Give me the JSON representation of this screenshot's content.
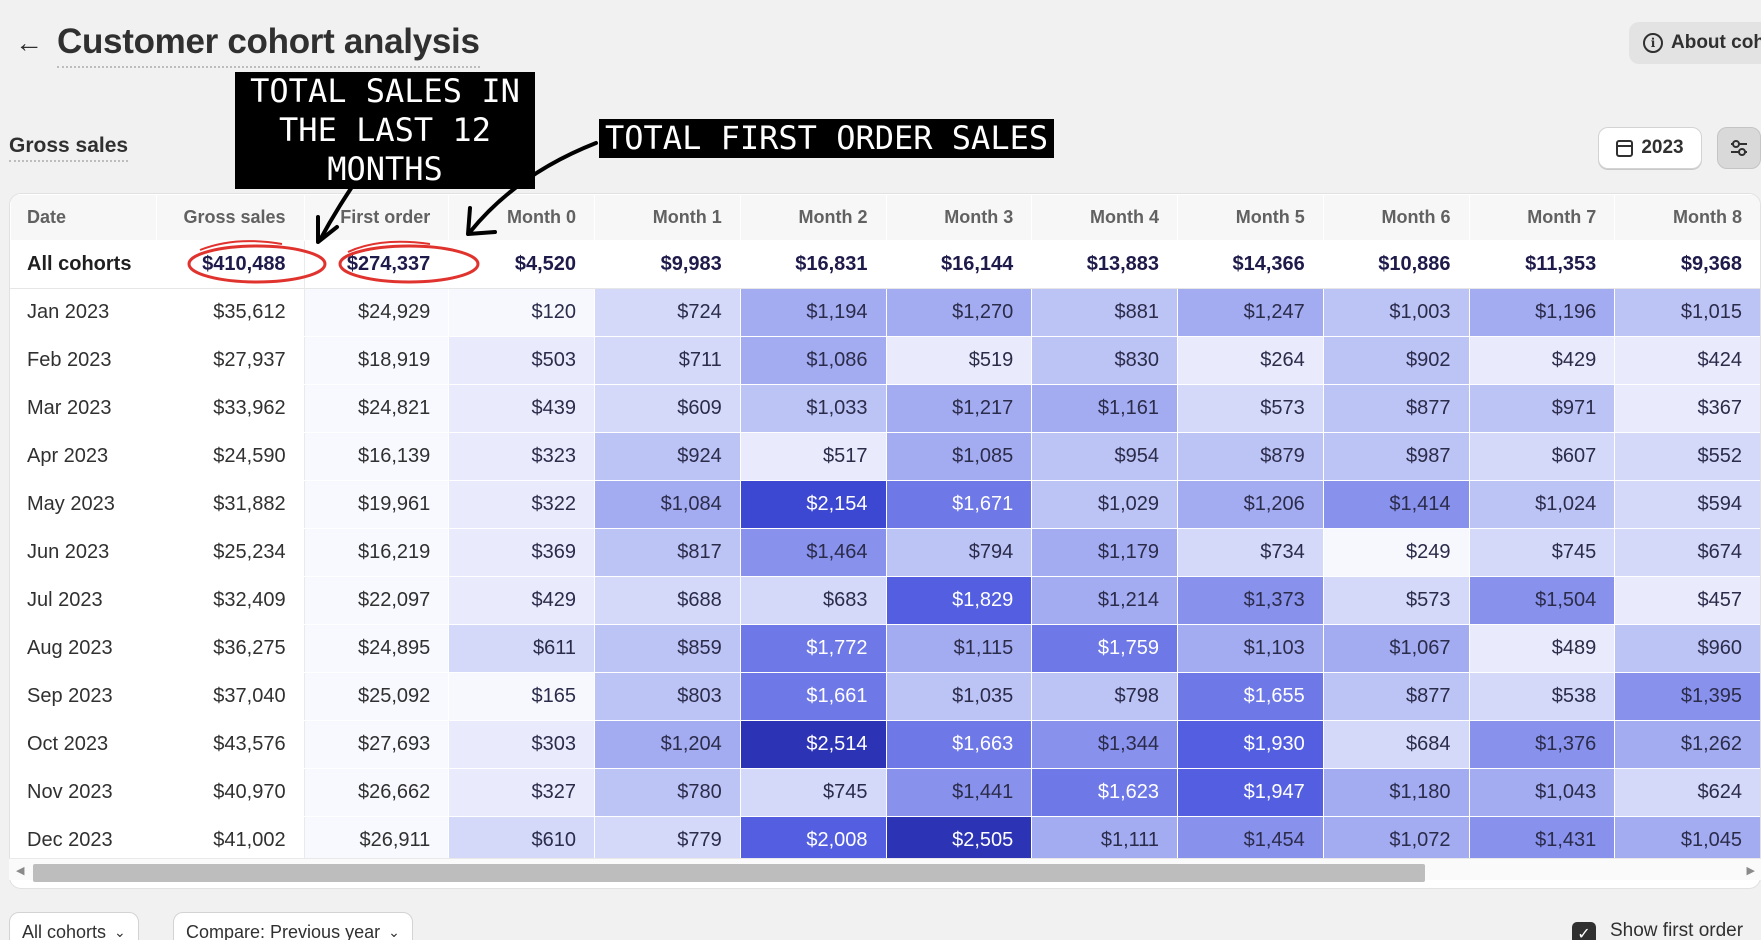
{
  "page": {
    "title": "Customer cohort analysis",
    "back_icon": "arrow-left-icon"
  },
  "header": {
    "about_label": "About coh",
    "about_icon": "info-icon"
  },
  "section": {
    "title": "Gross sales"
  },
  "toolbar": {
    "year_label": "2023",
    "year_icon": "calendar-icon",
    "filter_icon": "sliders-icon"
  },
  "table": {
    "columns": [
      "Date",
      "Gross sales",
      "First order",
      "Month 0",
      "Month 1",
      "Month 2",
      "Month 3",
      "Month 4",
      "Month 5",
      "Month 6",
      "Month 7",
      "Month 8"
    ],
    "all_cohorts": {
      "label": "All cohorts",
      "gross": "$410,488",
      "first": "$274,337",
      "months": [
        "$4,520",
        "$9,983",
        "$16,831",
        "$16,144",
        "$13,883",
        "$14,366",
        "$10,886",
        "$11,353",
        "$9,368"
      ]
    },
    "rows": [
      {
        "date": "Jan 2023",
        "gross": "$35,612",
        "first": "$24,929",
        "months": [
          "$120",
          "$724",
          "$1,194",
          "$1,270",
          "$881",
          "$1,247",
          "$1,003",
          "$1,196",
          "$1,015"
        ]
      },
      {
        "date": "Feb 2023",
        "gross": "$27,937",
        "first": "$18,919",
        "months": [
          "$503",
          "$711",
          "$1,086",
          "$519",
          "$830",
          "$264",
          "$902",
          "$429",
          "$424"
        ]
      },
      {
        "date": "Mar 2023",
        "gross": "$33,962",
        "first": "$24,821",
        "months": [
          "$439",
          "$609",
          "$1,033",
          "$1,217",
          "$1,161",
          "$573",
          "$877",
          "$971",
          "$367"
        ]
      },
      {
        "date": "Apr 2023",
        "gross": "$24,590",
        "first": "$16,139",
        "months": [
          "$323",
          "$924",
          "$517",
          "$1,085",
          "$954",
          "$879",
          "$987",
          "$607",
          "$552"
        ]
      },
      {
        "date": "May 2023",
        "gross": "$31,882",
        "first": "$19,961",
        "months": [
          "$322",
          "$1,084",
          "$2,154",
          "$1,671",
          "$1,029",
          "$1,206",
          "$1,414",
          "$1,024",
          "$594"
        ]
      },
      {
        "date": "Jun 2023",
        "gross": "$25,234",
        "first": "$16,219",
        "months": [
          "$369",
          "$817",
          "$1,464",
          "$794",
          "$1,179",
          "$734",
          "$249",
          "$745",
          "$674"
        ]
      },
      {
        "date": "Jul 2023",
        "gross": "$32,409",
        "first": "$22,097",
        "months": [
          "$429",
          "$688",
          "$683",
          "$1,829",
          "$1,214",
          "$1,373",
          "$573",
          "$1,504",
          "$457"
        ]
      },
      {
        "date": "Aug 2023",
        "gross": "$36,275",
        "first": "$24,895",
        "months": [
          "$611",
          "$859",
          "$1,772",
          "$1,115",
          "$1,759",
          "$1,103",
          "$1,067",
          "$489",
          "$960"
        ]
      },
      {
        "date": "Sep 2023",
        "gross": "$37,040",
        "first": "$25,092",
        "months": [
          "$165",
          "$803",
          "$1,661",
          "$1,035",
          "$798",
          "$1,655",
          "$877",
          "$538",
          "$1,395"
        ]
      },
      {
        "date": "Oct 2023",
        "gross": "$43,576",
        "first": "$27,693",
        "months": [
          "$303",
          "$1,204",
          "$2,514",
          "$1,663",
          "$1,344",
          "$1,930",
          "$684",
          "$1,376",
          "$1,262"
        ]
      },
      {
        "date": "Nov 2023",
        "gross": "$40,970",
        "first": "$26,662",
        "months": [
          "$327",
          "$780",
          "$745",
          "$1,441",
          "$1,623",
          "$1,947",
          "$1,180",
          "$1,043",
          "$624"
        ]
      },
      {
        "date": "Dec 2023",
        "gross": "$41,002",
        "first": "$26,911",
        "months": [
          "$610",
          "$779",
          "$2,008",
          "$2,505",
          "$1,111",
          "$1,454",
          "$1,072",
          "$1,431",
          "$1,045"
        ]
      }
    ],
    "heat_colors": [
      "#f7f8fe",
      "#e9ebfc",
      "#d4d9f9",
      "#bcc3f5",
      "#a3acf1",
      "#8892ec",
      "#6e78e6",
      "#535fe0",
      "#3c47d2",
      "#2d33b5"
    ]
  },
  "footer": {
    "cohorts_label": "All cohorts",
    "compare_label": "Compare: Previous year",
    "dropdown_icon": "chevron-down-icon",
    "show_first_label": "Show first order",
    "checkbox_icon": "checkmark-icon"
  },
  "annotations": {
    "callout_total": "TOTAL SALES IN THE LAST 12 MONTHS",
    "callout_first": "TOTAL FIRST ORDER SALES",
    "accent_color": "#e0332e"
  }
}
